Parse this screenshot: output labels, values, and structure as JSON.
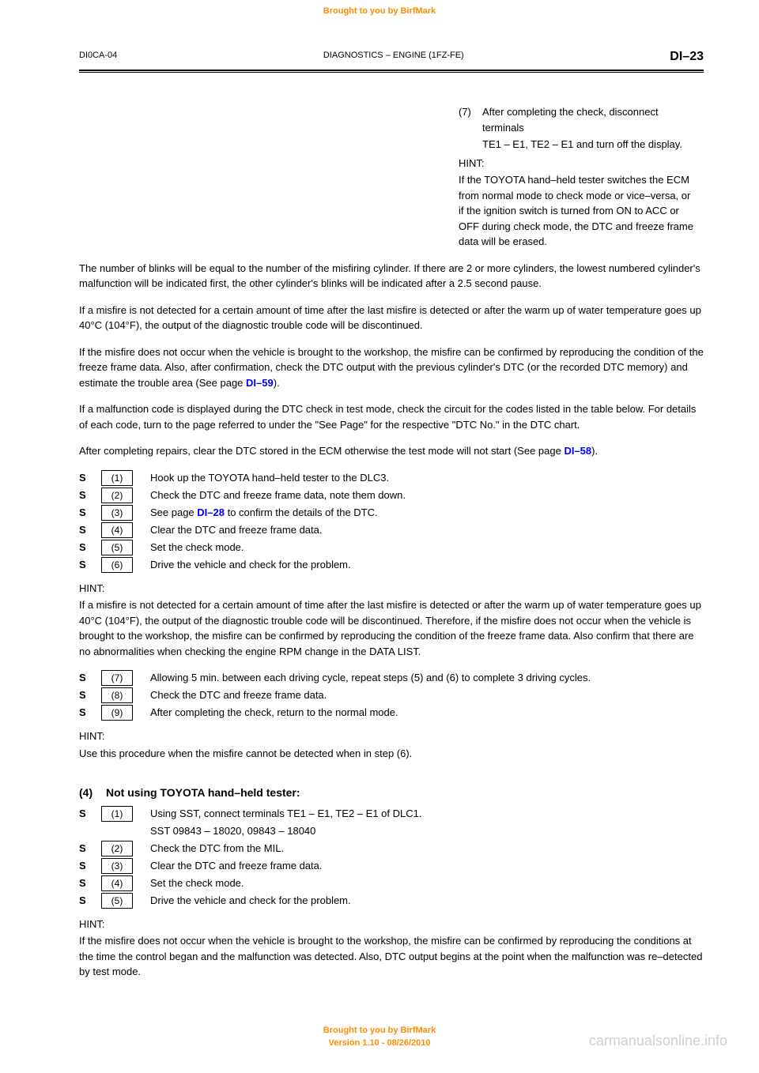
{
  "watermark": {
    "top": "Brought to you by BirfMark",
    "bottom_line1": "Brought to you by BirfMark",
    "bottom_line2": "Version 1.10 - 08/26/2010",
    "site": "carmanualsonline.info"
  },
  "header": {
    "left": "DI0CA-04",
    "center": "DIAGNOSTICS    –    ENGINE (1FZ-FE)",
    "right": "DI–23"
  },
  "intro": {
    "p1": "The number of blinks will be equal to the number of the misfiring cylinder. If there are 2 or more cylinders, the lowest numbered cylinder's malfunction will be indicated first, the other cylinder's blinks will be indicated after a 2.5 second pause.",
    "p2": "If a misfire is not detected for a certain amount of time after the last misfire is detected or after the warm up of water temperature goes up 40°C (104°F), the output of the diagnostic trouble code will be discontinued.",
    "p3": "If the misfire does not occur when the vehicle is brought to the workshop, the misfire can be confirmed by reproducing the condition of the freeze frame data. Also, after confirmation, check the DTC output with the previous cylinder's DTC (or the recorded DTC memory) and estimate the trouble area (See page ",
    "p3_link": "DI–59",
    "p3_after": ").",
    "p4": "If a malfunction code is displayed during the DTC check in test mode, check the circuit for the codes listed in the table below. For details of each code, turn to the page referred to under the \"See Page\" for the respective \"DTC No.\" in the DTC chart."
  },
  "links": {
    "di58": "DI–58",
    "di28": "DI–28"
  },
  "p5_before": "After completing repairs, clear the DTC stored in the ECM otherwise the test mode will not start (See page ",
  "p5_after": ").",
  "dlc": {
    "line1_num": "(7)",
    "line1_text": "After completing the check, disconnect terminals",
    "line2_text": "TE1 – E1, TE2 – E1 and turn off the display.",
    "hint_label": "HINT:",
    "hint_text": "If the TOYOTA hand–held tester switches the ECM from normal mode to check mode or vice–versa, or if the ignition switch is turned from ON to ACC or OFF during check mode, the DTC and freeze frame data will be erased."
  },
  "steps_a": [
    {
      "bullet": "S",
      "num": "(1)",
      "text": "Hook up the TOYOTA hand–held tester to the DLC3."
    },
    {
      "bullet": "S",
      "num": "(2)",
      "text": "Check the DTC and freeze frame data, note them down."
    },
    {
      "bullet": "S",
      "num": "(3)",
      "text_before": "See page ",
      "link": "DI–28",
      "text_after": " to confirm the details of the DTC."
    },
    {
      "bullet": "S",
      "num": "(4)",
      "text": "Clear the DTC and freeze frame data."
    },
    {
      "bullet": "S",
      "num": "(5)",
      "text": "Set the check mode."
    },
    {
      "bullet": "S",
      "num": "(6)",
      "text": "Drive the vehicle and check for the problem."
    }
  ],
  "hint_a": {
    "label": "HINT:",
    "text": "If a misfire is not detected for a certain amount of time after the last misfire is detected or after the warm up of water temperature goes up 40°C (104°F), the output of the diagnostic trouble code will be discontinued. Therefore, if the misfire does not occur when the vehicle is brought to the workshop, the misfire can be confirmed by reproducing the condition of the freeze frame data. Also confirm that there are no abnormalities when checking the engine RPM change in the DATA LIST."
  },
  "steps_b": [
    {
      "bullet": "S",
      "num": "(7)",
      "text": "Allowing 5 min. between each driving cycle, repeat steps (5) and (6) to complete 3 driving cycles."
    },
    {
      "bullet": "S",
      "num": "(8)",
      "text": "Check the DTC and freeze frame data."
    },
    {
      "bullet": "S",
      "num": "(9)",
      "text": "After completing the check, return to the normal mode."
    }
  ],
  "hint_b": {
    "label": "HINT:",
    "text": "Use this procedure when the misfire cannot be detected when in step (6)."
  },
  "section4": {
    "bullet": "(4)",
    "title": "Not using TOYOTA hand–held tester:",
    "steps": [
      {
        "bullet": "S",
        "num": "(1)",
        "text": "Using SST, connect terminals TE1 – E1, TE2 – E1 of DLC1."
      },
      {
        "bullet": "",
        "num": "",
        "text": "SST    09843 – 18020, 09843 – 18040"
      },
      {
        "bullet": "S",
        "num": "(2)",
        "text": "Check the DTC from the MIL."
      },
      {
        "bullet": "S",
        "num": "(3)",
        "text": "Clear the DTC and freeze frame data."
      },
      {
        "bullet": "S",
        "num": "(4)",
        "text": "Set the check mode."
      },
      {
        "bullet": "S",
        "num": "(5)",
        "text": "Drive the vehicle and check for the problem."
      }
    ],
    "hint_label": "HINT:",
    "hint_text": "If the misfire does not occur when the vehicle is brought to the workshop, the misfire can be confirmed by reproducing the conditions at the time the control began and the malfunction was detected. Also, DTC output begins at the point when the malfunction was re–detected by test mode."
  }
}
